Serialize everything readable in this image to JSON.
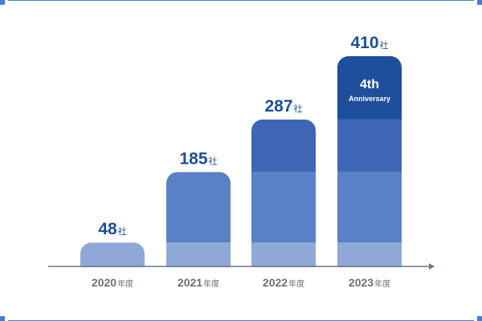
{
  "chart_data": {
    "type": "bar",
    "categories": [
      "2020",
      "2021",
      "2022",
      "2023"
    ],
    "category_suffix": "年度",
    "values": [
      48,
      185,
      287,
      410
    ],
    "value_unit": "社",
    "ylim": [
      0,
      410
    ],
    "grid": false,
    "legend": "none",
    "stack_segments": [
      48,
      137,
      102,
      123
    ],
    "segment_colors": [
      "#8fa8d8",
      "#5a80c6",
      "#3d66b4",
      "#1d4f9c"
    ],
    "axis_color": "#6b7787",
    "frame_color": "#3f7fd6",
    "annotation": {
      "category": "2023",
      "main": "4th",
      "sub": "Anniversary"
    }
  }
}
